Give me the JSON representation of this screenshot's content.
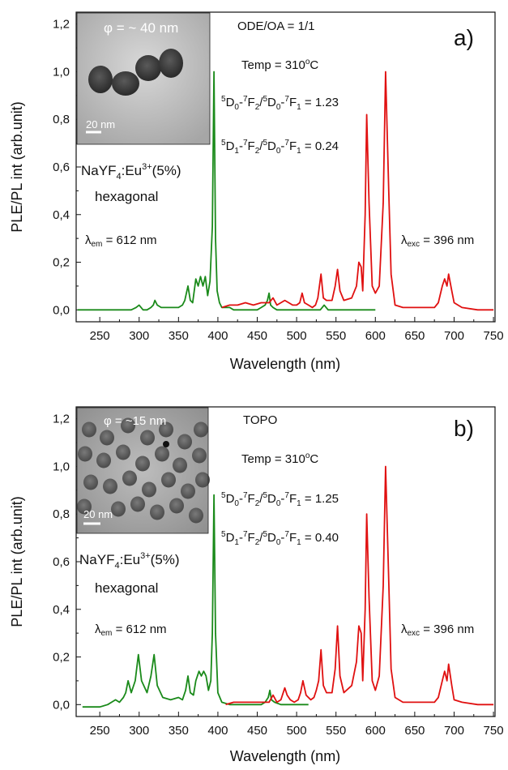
{
  "chart_data": [
    {
      "type": "line",
      "panel_label": "a)",
      "xlabel": "Wavelength (nm)",
      "ylabel": "PLE/PL int (arb.unit)",
      "xlim": [
        220,
        752
      ],
      "ylim": [
        -0.05,
        1.25
      ],
      "xticks": [
        250,
        300,
        350,
        400,
        450,
        500,
        550,
        600,
        650,
        700,
        750
      ],
      "yticks": [
        0.0,
        0.2,
        0.4,
        0.6,
        0.8,
        1.0,
        1.2
      ],
      "ytick_labels": [
        "0,0",
        "0,2",
        "0,4",
        "0,6",
        "0,8",
        "1,0",
        "1,2"
      ],
      "grid": false,
      "inset": {
        "diameter_text": "φ = ~ 40 nm",
        "scale_text": "20 nm"
      },
      "annotations": {
        "solvent": "ODE/OA = 1/1",
        "temp": "Temp = 310°C",
        "ratio1": {
          "label": "5D0-7F2/5D0-7F1",
          "value": "1.23"
        },
        "ratio2": {
          "label": "5D1-7F2/5D0-7F1",
          "value": "0.24"
        },
        "material": "NaYF4:Eu3+(5%)",
        "phase": "hexagonal",
        "lambda_em": "λem = 612 nm",
        "lambda_exc": "λexc = 396 nm"
      },
      "series": [
        {
          "role": "PLE",
          "color": "#1a8a1a",
          "x": [
            222,
            230,
            240,
            250,
            260,
            270,
            280,
            290,
            296,
            300,
            305,
            310,
            315,
            318,
            320,
            323,
            328,
            335,
            340,
            345,
            350,
            355,
            358,
            362,
            365,
            368,
            372,
            375,
            378,
            381,
            384,
            387,
            390,
            393,
            395,
            397,
            399,
            402,
            405,
            410,
            415,
            420,
            430,
            440,
            450,
            455,
            460,
            463,
            465,
            467,
            470,
            475,
            480,
            490,
            500,
            510,
            520,
            530,
            535,
            540,
            550,
            560,
            570,
            580,
            590,
            600
          ],
          "y": [
            0.0,
            0.0,
            0.0,
            0.0,
            0.0,
            0.0,
            0.0,
            0.0,
            0.01,
            0.02,
            0.0,
            0.0,
            0.01,
            0.02,
            0.04,
            0.02,
            0.01,
            0.01,
            0.01,
            0.01,
            0.01,
            0.02,
            0.04,
            0.1,
            0.04,
            0.03,
            0.13,
            0.1,
            0.14,
            0.1,
            0.14,
            0.06,
            0.12,
            0.35,
            1.0,
            0.3,
            0.08,
            0.03,
            0.01,
            0.01,
            0.01,
            0.0,
            0.0,
            0.0,
            0.0,
            0.01,
            0.02,
            0.04,
            0.07,
            0.02,
            0.01,
            0.0,
            0.0,
            0.0,
            0.0,
            0.0,
            0.0,
            0.0,
            0.02,
            0.0,
            0.0,
            0.0,
            0.0,
            0.0,
            0.0,
            0.0
          ]
        },
        {
          "role": "PL",
          "color": "#e01010",
          "x": [
            405,
            415,
            425,
            435,
            445,
            455,
            465,
            470,
            475,
            480,
            485,
            490,
            495,
            500,
            504,
            507,
            510,
            515,
            520,
            524,
            527,
            531,
            534,
            538,
            545,
            549,
            552,
            555,
            560,
            570,
            576,
            579,
            582,
            584,
            587,
            589,
            592,
            596,
            600,
            605,
            610,
            613,
            617,
            620,
            625,
            635,
            650,
            665,
            675,
            680,
            685,
            688,
            691,
            693,
            697,
            700,
            710,
            730,
            750
          ],
          "y": [
            0.01,
            0.02,
            0.02,
            0.03,
            0.02,
            0.03,
            0.03,
            0.05,
            0.02,
            0.03,
            0.04,
            0.03,
            0.02,
            0.02,
            0.03,
            0.07,
            0.03,
            0.02,
            0.01,
            0.02,
            0.05,
            0.15,
            0.05,
            0.04,
            0.04,
            0.1,
            0.17,
            0.08,
            0.04,
            0.05,
            0.1,
            0.2,
            0.18,
            0.08,
            0.4,
            0.82,
            0.45,
            0.1,
            0.07,
            0.1,
            0.45,
            1.0,
            0.5,
            0.15,
            0.02,
            0.01,
            0.01,
            0.01,
            0.01,
            0.03,
            0.1,
            0.13,
            0.1,
            0.15,
            0.08,
            0.03,
            0.01,
            0.0,
            0.0
          ]
        }
      ]
    },
    {
      "type": "line",
      "panel_label": "b)",
      "xlabel": "Wavelength (nm)",
      "ylabel": "PLE/PL int (arb.unit)",
      "xlim": [
        220,
        752
      ],
      "ylim": [
        -0.05,
        1.25
      ],
      "xticks": [
        250,
        300,
        350,
        400,
        450,
        500,
        550,
        600,
        650,
        700,
        750
      ],
      "yticks": [
        0.0,
        0.2,
        0.4,
        0.6,
        0.8,
        1.0,
        1.2
      ],
      "ytick_labels": [
        "0,0",
        "0,2",
        "0,4",
        "0,6",
        "0,8",
        "1,0",
        "1,2"
      ],
      "grid": false,
      "inset": {
        "diameter_text": "φ = ~15 nm",
        "scale_text": "20 nm"
      },
      "annotations": {
        "solvent": "TOPO",
        "temp": "Temp = 310°C",
        "ratio1": {
          "label": "5D0-7F2/5D0-7F1",
          "value": "1.25"
        },
        "ratio2": {
          "label": "5D1-7F2/5D0-7F1",
          "value": "0.40"
        },
        "material": "NaYF4:Eu3+(5%)",
        "phase": "hexagonal",
        "lambda_em": "λem = 612 nm",
        "lambda_exc": "λexc = 396 nm"
      },
      "series": [
        {
          "role": "PLE",
          "color": "#1a8a1a",
          "x": [
            228,
            240,
            250,
            260,
            265,
            270,
            275,
            280,
            283,
            286,
            290,
            295,
            299,
            303,
            310,
            315,
            319,
            323,
            330,
            340,
            350,
            355,
            359,
            362,
            365,
            369,
            372,
            376,
            379,
            382,
            385,
            388,
            391,
            393,
            395,
            397,
            400,
            405,
            415,
            425,
            440,
            455,
            460,
            464,
            466,
            468,
            472,
            480,
            490,
            500,
            510,
            515
          ],
          "y": [
            -0.01,
            -0.01,
            -0.01,
            0.0,
            0.01,
            0.02,
            0.01,
            0.03,
            0.05,
            0.1,
            0.05,
            0.1,
            0.21,
            0.1,
            0.05,
            0.12,
            0.21,
            0.08,
            0.03,
            0.02,
            0.03,
            0.02,
            0.06,
            0.12,
            0.05,
            0.04,
            0.1,
            0.14,
            0.12,
            0.14,
            0.12,
            0.06,
            0.1,
            0.3,
            0.88,
            0.3,
            0.05,
            0.01,
            0.0,
            0.0,
            0.0,
            0.0,
            0.01,
            0.03,
            0.06,
            0.02,
            0.01,
            0.0,
            0.0,
            0.0,
            0.0,
            0.0
          ]
        },
        {
          "role": "PL",
          "color": "#e01010",
          "x": [
            410,
            420,
            430,
            440,
            450,
            460,
            465,
            470,
            475,
            480,
            485,
            488,
            492,
            497,
            502,
            505,
            508,
            512,
            518,
            522,
            525,
            528,
            531,
            534,
            538,
            545,
            549,
            552,
            555,
            560,
            570,
            576,
            579,
            582,
            584,
            587,
            589,
            592,
            596,
            600,
            605,
            610,
            613,
            617,
            620,
            625,
            635,
            650,
            665,
            675,
            680,
            685,
            688,
            691,
            693,
            697,
            700,
            710,
            730,
            750
          ],
          "y": [
            0.0,
            0.01,
            0.01,
            0.01,
            0.01,
            0.01,
            0.01,
            0.04,
            0.01,
            0.02,
            0.07,
            0.04,
            0.02,
            0.01,
            0.02,
            0.05,
            0.1,
            0.04,
            0.02,
            0.03,
            0.06,
            0.1,
            0.23,
            0.08,
            0.05,
            0.05,
            0.15,
            0.33,
            0.12,
            0.05,
            0.08,
            0.18,
            0.33,
            0.3,
            0.1,
            0.4,
            0.8,
            0.45,
            0.1,
            0.06,
            0.12,
            0.5,
            1.0,
            0.52,
            0.15,
            0.03,
            0.01,
            0.01,
            0.01,
            0.01,
            0.03,
            0.1,
            0.14,
            0.1,
            0.17,
            0.08,
            0.02,
            0.01,
            0.0,
            0.0
          ]
        }
      ]
    }
  ]
}
